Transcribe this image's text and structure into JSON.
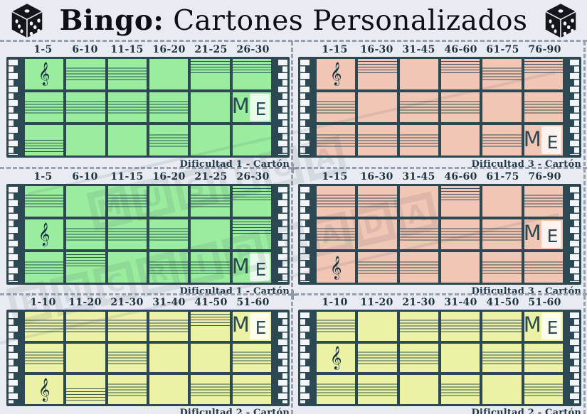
{
  "title": {
    "bold": "Bingo:",
    "rest": " Cartones Personalizados"
  },
  "icons": {
    "dice": "3d-die-with-pips",
    "piano_strip": "piano-keys-strip",
    "treble_clef": "𝄞"
  },
  "glyphs": {
    "cut_cross": "+"
  },
  "logo": {
    "m": "M",
    "e": "E"
  },
  "watermark": {
    "line1": "MÚSICA",
    "line2": "ENCRIPTADA"
  },
  "colors": {
    "page_background": "#e9ebf2",
    "frame_slate": "#2c4852",
    "card_green": "#9aed9f",
    "card_pink": "#f2c6b5",
    "card_yellow": "#ebf2a6",
    "cut_line_grey": "#98a0ad",
    "title_black": "#0e0e15"
  },
  "cards": [
    {
      "position": "top-left",
      "color": "#9aed9f",
      "ranges": [
        "1-5",
        "6-10",
        "11-15",
        "16-20",
        "21-25",
        "26-30"
      ],
      "difficulty_label": "Dificultad 1 - Cartón",
      "rows": [
        [
          "clef",
          "staff-m",
          "staff-m",
          "empty",
          "staff-t",
          "staff-t"
        ],
        [
          "staff-m",
          "staff-m",
          "staff-m",
          "staff-m",
          "empty",
          "logo"
        ],
        [
          "staff-b",
          "empty",
          "empty",
          "staff-m",
          "empty",
          "empty"
        ]
      ]
    },
    {
      "position": "top-right",
      "color": "#f2c6b5",
      "ranges": [
        "1-15",
        "16-30",
        "31-45",
        "46-60",
        "61-75",
        "76-90"
      ],
      "difficulty_label": "Dificultad 3 - Cartón",
      "rows": [
        [
          "clef",
          "staff-t",
          "empty",
          "staff-t",
          "staff-m",
          "staff-t"
        ],
        [
          "staff-m",
          "empty",
          "staff-m",
          "staff-m",
          "empty",
          "staff-m"
        ],
        [
          "staff-m",
          "staff-m",
          "staff-m",
          "empty",
          "staff-m",
          "logo"
        ]
      ]
    },
    {
      "position": "middle-left",
      "color": "#9aed9f",
      "ranges": [
        "1-5",
        "6-10",
        "11-15",
        "16-20",
        "21-25",
        "26-30"
      ],
      "difficulty_label": "Dificultad 1 - Cartón",
      "rows": [
        [
          "staff-m",
          "empty",
          "staff-m",
          "empty",
          "staff-m",
          "staff-t"
        ],
        [
          "clef",
          "staff-m",
          "staff-m",
          "staff-m",
          "empty",
          "staff-t"
        ],
        [
          "staff-m",
          "staff-t",
          "empty",
          "staff-m",
          "staff-m",
          "logo"
        ]
      ]
    },
    {
      "position": "middle-right",
      "color": "#f2c6b5",
      "ranges": [
        "1-15",
        "16-30",
        "31-45",
        "46-60",
        "61-75",
        "76-90"
      ],
      "difficulty_label": "Dificultad 3 - Cartón",
      "rows": [
        [
          "staff-m",
          "staff-m",
          "empty",
          "staff-t",
          "empty",
          "staff-m"
        ],
        [
          "staff-m",
          "empty",
          "staff-m",
          "staff-m",
          "staff-m",
          "logo"
        ],
        [
          "clef",
          "staff-m",
          "staff-m",
          "empty",
          "staff-m",
          "staff-m"
        ]
      ]
    },
    {
      "position": "bottom-left",
      "color": "#ebf2a6",
      "ranges": [
        "1-10",
        "11-20",
        "21-30",
        "31-40",
        "41-50",
        "51-60"
      ],
      "difficulty_label": "Dificultad 2 - Cartón",
      "rows": [
        [
          "staff-m",
          "staff-m",
          "staff-m",
          "staff-m",
          "staff-t",
          "logo"
        ],
        [
          "staff-m",
          "empty",
          "staff-m",
          "empty",
          "empty",
          "staff-m"
        ],
        [
          "clef",
          "staff-b",
          "staff-m",
          "empty",
          "staff-m",
          "staff-m"
        ]
      ]
    },
    {
      "position": "bottom-right",
      "color": "#ebf2a6",
      "ranges": [
        "1-10",
        "11-20",
        "21-30",
        "31-40",
        "41-50",
        "51-60"
      ],
      "difficulty_label": "Dificultad 2 - Cartón",
      "rows": [
        [
          "staff-m",
          "empty",
          "staff-m",
          "staff-m",
          "staff-m",
          "logo"
        ],
        [
          "clef",
          "staff-m",
          "staff-m",
          "empty",
          "staff-m",
          "staff-m"
        ],
        [
          "staff-m",
          "staff-m",
          "empty",
          "staff-m",
          "empty",
          "staff-m"
        ]
      ]
    }
  ]
}
